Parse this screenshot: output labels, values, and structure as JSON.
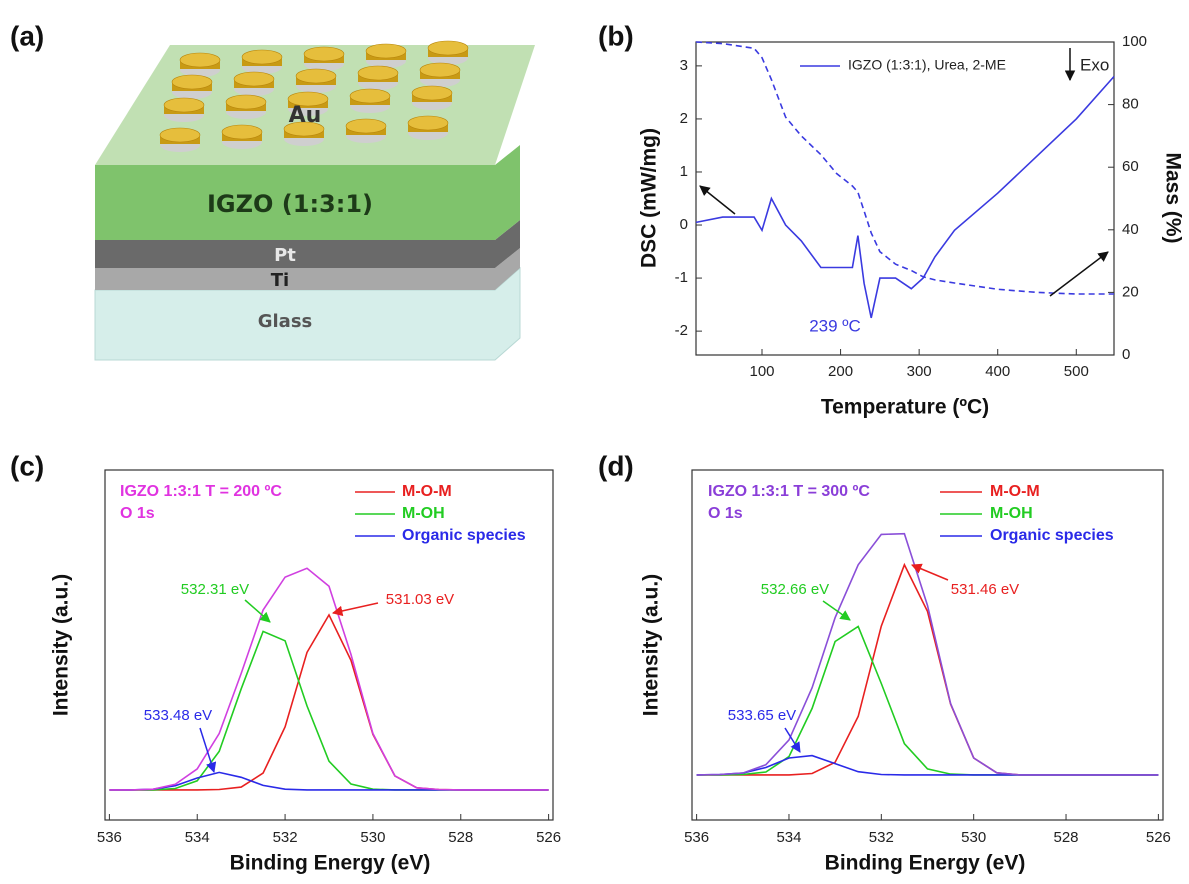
{
  "diagram": {
    "panel_label": "(a)",
    "layers": [
      "Au",
      "IGZO (1:3:1)",
      "Pt",
      "Ti",
      "Glass"
    ]
  },
  "chart_data": [
    {
      "type": "line",
      "panel_label": "(b)",
      "xlabel": "Temperature (ºC)",
      "ylabel": "DSC (mW/mg)",
      "y2label": "Mass (%)",
      "x": [
        16,
        50,
        90,
        100,
        112,
        130,
        150,
        175,
        195,
        215,
        222,
        230,
        239,
        250,
        270,
        290,
        305,
        320,
        345,
        400,
        450,
        500,
        548
      ],
      "series": [
        {
          "name": "IGZO (1:3:1), Urea, 2-ME",
          "color": "#3a3ae0",
          "values": [
            0.05,
            0.15,
            0.15,
            -0.1,
            0.5,
            0,
            -0.3,
            -0.8,
            -0.8,
            -0.8,
            -0.2,
            -1.1,
            -1.75,
            -1.0,
            -1.0,
            -1.2,
            -1.0,
            -0.6,
            -0.1,
            0.6,
            1.3,
            2.0,
            2.8
          ]
        },
        {
          "color": "#3a3ae0",
          "dash": true,
          "axis": "y2",
          "values": [
            100,
            99.5,
            98,
            95,
            88,
            76,
            70,
            64,
            58,
            54,
            52,
            46,
            39,
            33,
            29,
            27,
            25,
            24,
            23,
            21,
            20,
            19.5,
            19.5
          ]
        }
      ],
      "xlim": [
        16,
        548
      ],
      "xticks": [
        100,
        200,
        300,
        400,
        500
      ],
      "ylim": [
        -2.45,
        3.45
      ],
      "yticks": [
        -2,
        -1,
        0,
        1,
        2,
        3
      ],
      "y2lim": [
        0,
        100
      ],
      "y2ticks": [
        0,
        20,
        40,
        60,
        80,
        100
      ],
      "annotations": [
        {
          "text": "239 ºC",
          "color": "#3a3ae0"
        },
        {
          "text": "Exo",
          "color": "#222222"
        }
      ]
    },
    {
      "type": "line",
      "panel_label": "(c)",
      "xlabel": "Binding Energy (eV)",
      "ylabel": "Intensity (a.u.)",
      "header": [
        "IGZO 1:3:1 T = 200 ºC",
        "O 1s"
      ],
      "header_color": "#e033e0",
      "x": [
        536,
        535.5,
        535,
        534.5,
        534,
        533.5,
        533,
        532.5,
        532,
        531.5,
        531,
        530.5,
        530,
        529.5,
        529,
        528.5,
        528,
        527.5,
        527,
        526.5,
        526
      ],
      "series": [
        {
          "name": "M-O-M",
          "color": "#e82020",
          "values": [
            8.6,
            8.6,
            8.6,
            8.6,
            8.6,
            8.7,
            9.4,
            13.4,
            26.6,
            47.9,
            58.6,
            45.6,
            24.5,
            12.6,
            9.2,
            8.7,
            8.6,
            8.6,
            8.6,
            8.6,
            8.6
          ]
        },
        {
          "name": "M-OH",
          "color": "#22cc22",
          "values": [
            8.6,
            8.6,
            8.6,
            9.0,
            11.2,
            19.6,
            37.5,
            53.9,
            51.2,
            32.6,
            16.8,
            10.3,
            8.8,
            8.6,
            8.6,
            8.6,
            8.6,
            8.6,
            8.6,
            8.6,
            8.6
          ]
        },
        {
          "name": "Organic species",
          "color": "#2a2ae8",
          "values": [
            8.6,
            8.6,
            8.8,
            9.8,
            12.0,
            13.6,
            12.2,
            9.9,
            8.8,
            8.6,
            8.6,
            8.6,
            8.6,
            8.6,
            8.6,
            8.6,
            8.6,
            8.6,
            8.6,
            8.6,
            8.6
          ]
        },
        {
          "color": "#d040e0",
          "values": [
            8.6,
            8.6,
            8.8,
            10.2,
            14.6,
            24.7,
            41.9,
            60.0,
            69.4,
            71.9,
            66.8,
            47.3,
            24.7,
            12.6,
            9.2,
            8.7,
            8.6,
            8.6,
            8.6,
            8.6,
            8.6
          ]
        }
      ],
      "xlim": [
        536.1,
        525.9
      ],
      "xticks": [
        536,
        534,
        532,
        530,
        528,
        526
      ],
      "ylim": [
        0,
        100
      ],
      "annotations": [
        {
          "text": "532.31 eV",
          "color": "#22cc22"
        },
        {
          "text": "531.03 eV",
          "color": "#e82020"
        },
        {
          "text": "533.48 eV",
          "color": "#2a2ae8"
        }
      ]
    },
    {
      "type": "line",
      "panel_label": "(d)",
      "xlabel": "Binding Energy (eV)",
      "ylabel": "Intensity (a.u.)",
      "header": [
        "IGZO 1:3:1 T = 300 ºC",
        "O 1s"
      ],
      "header_color": "#8a3ed8",
      "x": [
        536,
        535.5,
        535,
        534.5,
        534,
        533.5,
        533,
        532.5,
        532,
        531.5,
        531,
        530.5,
        530,
        529.5,
        529,
        528.5,
        528,
        527.5,
        527,
        526.5,
        526
      ],
      "series": [
        {
          "name": "M-O-M",
          "color": "#e82020",
          "values": [
            12.9,
            12.9,
            12.9,
            12.9,
            12.9,
            13.3,
            16.5,
            29.6,
            55.4,
            72.9,
            59.6,
            33.1,
            17.7,
            13.5,
            12.9,
            12.9,
            12.9,
            12.9,
            12.9,
            12.9,
            12.9
          ]
        },
        {
          "name": "M-OH",
          "color": "#22cc22",
          "values": [
            12.9,
            12.9,
            13.0,
            13.7,
            18.1,
            31.9,
            51.0,
            55.3,
            39.0,
            21.8,
            14.6,
            13.1,
            12.9,
            12.9,
            12.9,
            12.9,
            12.9,
            12.9,
            12.9,
            12.9,
            12.9
          ]
        },
        {
          "name": "Organic species",
          "color": "#2a2ae8",
          "values": [
            12.9,
            13.0,
            13.4,
            15.0,
            17.7,
            18.4,
            16.1,
            13.8,
            13.0,
            12.9,
            12.9,
            12.9,
            12.9,
            12.9,
            12.9,
            12.9,
            12.9,
            12.9,
            12.9,
            12.9,
            12.9
          ]
        },
        {
          "color": "#8a4fd8",
          "values": [
            12.9,
            13.0,
            13.4,
            15.8,
            22.9,
            37.8,
            57.8,
            72.9,
            81.6,
            81.8,
            61.3,
            33.3,
            17.7,
            13.5,
            12.9,
            12.9,
            12.9,
            12.9,
            12.9,
            12.9,
            12.9
          ]
        }
      ],
      "xlim": [
        536.1,
        525.9
      ],
      "xticks": [
        536,
        534,
        532,
        530,
        528,
        526
      ],
      "ylim": [
        0,
        100
      ],
      "annotations": [
        {
          "text": "532.66 eV",
          "color": "#22cc22"
        },
        {
          "text": "531.46 eV",
          "color": "#e82020"
        },
        {
          "text": "533.65 eV",
          "color": "#2a2ae8"
        }
      ]
    }
  ]
}
